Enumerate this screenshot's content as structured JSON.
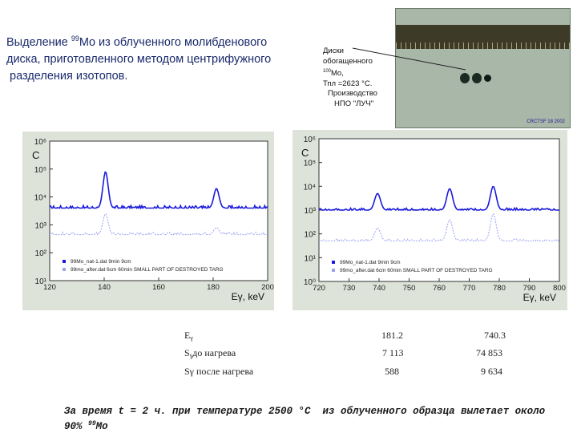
{
  "title": {
    "line1_prefix": "Выделение ",
    "line1_sup": "99",
    "line1_rest": "Mo из облученного молибденового",
    "line2": "диска, приготовленного методом центрифужного",
    "line3": " разделения изотопов."
  },
  "photo_caption": {
    "line1": "Диски",
    "line2": "обогащенного",
    "line3_sup": "100",
    "line3_rest": "Mo,",
    "line4": "Тпл =2623 °С.",
    "line5": "Производство",
    "line6": "НПО \"ЛУЧ\""
  },
  "photo": {
    "stamp": "CRCTSF 18 2002"
  },
  "chart_data": [
    {
      "type": "line",
      "ylabel": "C",
      "xlabel": "Eγ, keV",
      "xlim": [
        120,
        200
      ],
      "x_ticks": [
        120,
        140,
        160,
        180,
        200
      ],
      "ylim_log10": [
        1,
        6
      ],
      "y_ticks": [
        "10¹",
        "10²",
        "10³",
        "10⁴",
        "10⁵",
        "10⁶"
      ],
      "legend_position": "bottom-left",
      "series": [
        {
          "name": "99Mo_nat-1.dat 9min 9cm",
          "color": "#1a1adc",
          "baseline_log10": 3.6,
          "peaks": [
            {
              "x": 140.5,
              "height_log10": 4.9
            },
            {
              "x": 181.2,
              "height_log10": 4.3
            }
          ]
        },
        {
          "name": "99mo_after.dat 6cm 60min SMALL PART OF DESTROYED TARG",
          "color": "#9aa2f0",
          "baseline_log10": 2.65,
          "peaks": [
            {
              "x": 140.5,
              "height_log10": 3.4
            },
            {
              "x": 181.2,
              "height_log10": 2.9
            }
          ]
        }
      ]
    },
    {
      "type": "line",
      "ylabel": "C",
      "xlabel": "Eγ, keV",
      "xlim": [
        720,
        800
      ],
      "x_ticks": [
        720,
        730,
        740,
        750,
        760,
        770,
        780,
        790,
        800
      ],
      "ylim_log10": [
        0,
        6
      ],
      "y_ticks": [
        "10⁰",
        "10¹",
        "10²",
        "10³",
        "10⁴",
        "10⁵",
        "10⁶"
      ],
      "legend_position": "bottom-left",
      "series": [
        {
          "name": "99Mo_nat-1.dat 9min 9cm",
          "color": "#1a1adc",
          "baseline_log10": 3.0,
          "peaks": [
            {
              "x": 739.5,
              "height_log10": 3.7
            },
            {
              "x": 763.5,
              "height_log10": 3.9
            },
            {
              "x": 778,
              "height_log10": 4.0
            }
          ]
        },
        {
          "name": "99mo_after.dat 6cm 60min SMALL PART OF DESTROYED TARG",
          "color": "#9aa2f0",
          "baseline_log10": 1.7,
          "peaks": [
            {
              "x": 739.5,
              "height_log10": 2.25
            },
            {
              "x": 763.5,
              "height_log10": 2.6
            },
            {
              "x": 778,
              "height_log10": 2.85
            }
          ]
        }
      ]
    }
  ],
  "table": {
    "rows": [
      {
        "label_main": "E",
        "label_sub": "γ",
        "c1": "181.2",
        "c2": "740.3"
      },
      {
        "label_main": "S",
        "label_sub": "γ",
        "label_rest": "до нагрева",
        "c1": "7 113",
        "c2": "74 853"
      },
      {
        "label_main": "Sγ после нагрева",
        "c1": "588",
        "c2": "9 634"
      }
    ]
  },
  "note": {
    "part1": "За время t = 2 ч. при температуре 2500 °C  из облученного образца вылетает около",
    "part2_prefix": "90% ",
    "part2_sup": "99",
    "part2_rest": "Mo"
  }
}
